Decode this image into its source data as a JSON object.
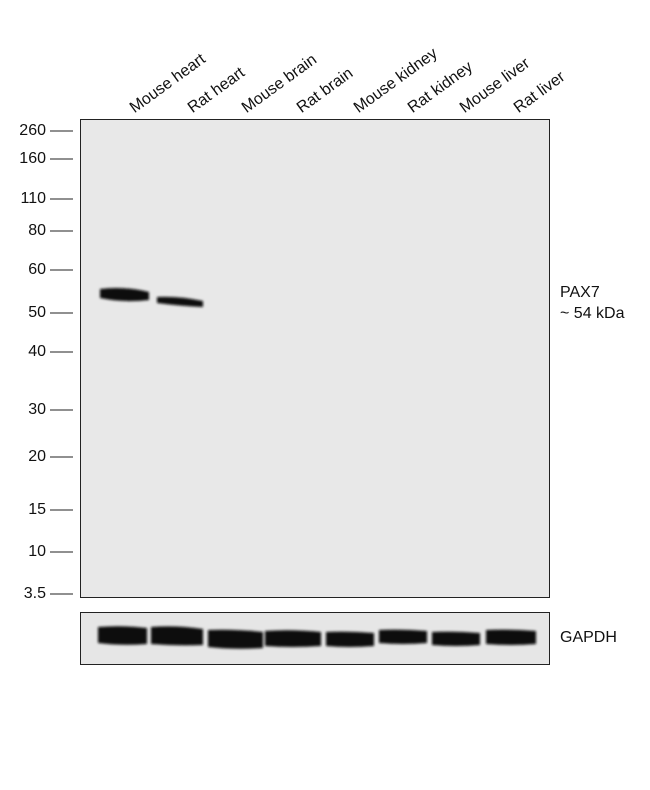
{
  "lanes": [
    "Mouse heart",
    "Rat heart",
    "Mouse brain",
    "Rat brain",
    "Mouse kidney",
    "Rat kidney",
    "Mouse liver",
    "Rat liver"
  ],
  "markers": [
    "260",
    "160",
    "110",
    "80",
    "60",
    "50",
    "40",
    "30",
    "20",
    "15",
    "10",
    "3.5"
  ],
  "target": {
    "name": "PAX7",
    "size": "~ 54 kDa"
  },
  "loading_control": "GAPDH"
}
